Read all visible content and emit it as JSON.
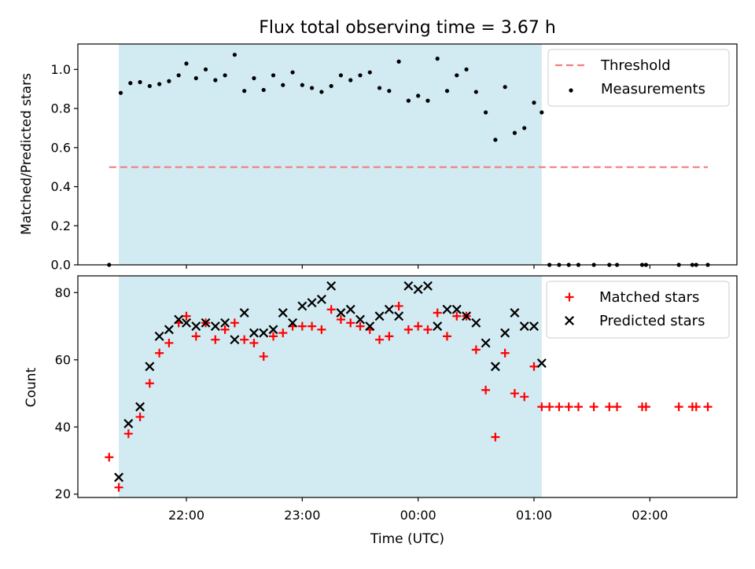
{
  "chart_data": [
    {
      "type": "scatter",
      "title": "Flux total observing time = 3.67 h",
      "xlabel": "",
      "ylabel": "Matched/Predicted stars",
      "ylim": [
        0.0,
        1.13
      ],
      "yticks": [
        "0.0",
        "0.2",
        "0.4",
        "0.6",
        "0.8",
        "1.0"
      ],
      "shaded_region": {
        "x_start": "21:25",
        "x_end": "01:04",
        "color": "#add8e6"
      },
      "legend_position": "top-right",
      "threshold": {
        "name": "Threshold",
        "value": 0.5,
        "x_start": "21:20",
        "x_end": "02:30",
        "color": "#f08080"
      },
      "series": [
        {
          "name": "Measurements",
          "color": "#000000",
          "marker": "dot",
          "x": [
            "21:20",
            "21:26",
            "21:31",
            "21:36",
            "21:41",
            "21:46",
            "21:51",
            "21:56",
            "22:00",
            "22:05",
            "22:10",
            "22:15",
            "22:20",
            "22:25",
            "22:30",
            "22:35",
            "22:40",
            "22:45",
            "22:50",
            "22:55",
            "23:00",
            "23:05",
            "23:10",
            "23:15",
            "23:20",
            "23:25",
            "23:30",
            "23:35",
            "23:40",
            "23:45",
            "23:50",
            "23:55",
            "00:00",
            "00:05",
            "00:10",
            "00:15",
            "00:20",
            "00:25",
            "00:30",
            "00:35",
            "00:40",
            "00:45",
            "00:50",
            "00:55",
            "01:00",
            "01:04",
            "01:08",
            "01:13",
            "01:18",
            "01:23",
            "01:31",
            "01:39",
            "01:43",
            "01:56",
            "01:58",
            "02:15",
            "02:22",
            "02:24",
            "02:30"
          ],
          "y": [
            0.0,
            0.88,
            0.93,
            0.935,
            0.915,
            0.925,
            0.94,
            0.97,
            1.03,
            0.955,
            1.0,
            0.945,
            0.97,
            1.075,
            0.89,
            0.955,
            0.895,
            0.97,
            0.92,
            0.985,
            0.92,
            0.905,
            0.885,
            0.915,
            0.97,
            0.945,
            0.97,
            0.985,
            0.905,
            0.89,
            1.04,
            0.84,
            0.865,
            0.84,
            1.055,
            0.89,
            0.97,
            1.0,
            0.885,
            0.78,
            0.64,
            0.91,
            0.675,
            0.7,
            0.83,
            0.78,
            0.0,
            0.0,
            0.0,
            0.0,
            0.0,
            0.0,
            0.0,
            0.0,
            0.0,
            0.0,
            0.0,
            0.0,
            0.0
          ]
        }
      ]
    },
    {
      "type": "scatter",
      "title": "",
      "xlabel": "Time (UTC)",
      "ylabel": "Count",
      "ylim": [
        19,
        85
      ],
      "yticks": [
        "20",
        "40",
        "60",
        "80"
      ],
      "xticks": [
        "22:00",
        "23:00",
        "00:00",
        "01:00",
        "02:00"
      ],
      "shaded_region": {
        "x_start": "21:25",
        "x_end": "01:04",
        "color": "#add8e6"
      },
      "legend_position": "top-right",
      "series": [
        {
          "name": "Matched stars",
          "color": "#ff0000",
          "marker": "plus",
          "x": [
            "21:20",
            "21:25",
            "21:30",
            "21:36",
            "21:41",
            "21:46",
            "21:51",
            "21:56",
            "22:00",
            "22:05",
            "22:10",
            "22:15",
            "22:20",
            "22:25",
            "22:30",
            "22:35",
            "22:40",
            "22:45",
            "22:50",
            "22:55",
            "23:00",
            "23:05",
            "23:10",
            "23:15",
            "23:20",
            "23:25",
            "23:30",
            "23:35",
            "23:40",
            "23:45",
            "23:50",
            "23:55",
            "00:00",
            "00:05",
            "00:10",
            "00:15",
            "00:20",
            "00:25",
            "00:30",
            "00:35",
            "00:40",
            "00:45",
            "00:50",
            "00:55",
            "01:00",
            "01:04",
            "01:08",
            "01:13",
            "01:18",
            "01:23",
            "01:31",
            "01:39",
            "01:43",
            "01:56",
            "01:58",
            "02:15",
            "02:22",
            "02:24",
            "02:30"
          ],
          "y": [
            31,
            22,
            38,
            43,
            53,
            62,
            65,
            71,
            73,
            67,
            71,
            66,
            69,
            71,
            66,
            65,
            61,
            67,
            68,
            70,
            70,
            70,
            69,
            75,
            72,
            71,
            70,
            69,
            66,
            67,
            76,
            69,
            70,
            69,
            74,
            67,
            73,
            73,
            63,
            51,
            37,
            62,
            50,
            49,
            58,
            46,
            46,
            46,
            46,
            46,
            46,
            46,
            46,
            46,
            46,
            46,
            46,
            46,
            46
          ]
        },
        {
          "name": "Predicted stars",
          "color": "#000000",
          "marker": "x",
          "x": [
            "21:25",
            "21:30",
            "21:36",
            "21:41",
            "21:46",
            "21:51",
            "21:56",
            "22:00",
            "22:05",
            "22:10",
            "22:15",
            "22:20",
            "22:25",
            "22:30",
            "22:35",
            "22:40",
            "22:45",
            "22:50",
            "22:55",
            "23:00",
            "23:05",
            "23:10",
            "23:15",
            "23:20",
            "23:25",
            "23:30",
            "23:35",
            "23:40",
            "23:45",
            "23:50",
            "23:55",
            "00:00",
            "00:05",
            "00:10",
            "00:15",
            "00:20",
            "00:25",
            "00:30",
            "00:35",
            "00:40",
            "00:45",
            "00:50",
            "00:55",
            "01:00",
            "01:04"
          ],
          "y": [
            25,
            41,
            46,
            58,
            67,
            69,
            72,
            71,
            70,
            71,
            70,
            71,
            66,
            74,
            68,
            68,
            69,
            74,
            71,
            76,
            77,
            78,
            82,
            74,
            75,
            72,
            70,
            73,
            75,
            73,
            82,
            81,
            82,
            70,
            75,
            75,
            73,
            71,
            65,
            58,
            68,
            74,
            70,
            70,
            59
          ]
        }
      ]
    }
  ]
}
